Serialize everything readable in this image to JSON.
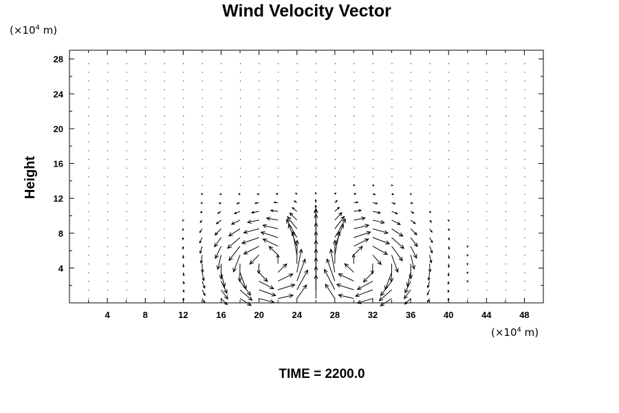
{
  "chart_data": {
    "type": "vector-field",
    "title": "Wind Velocity Vector",
    "ylabel": "Height",
    "xlabel": "",
    "x_unit": {
      "prefix": "(×10",
      "exp": "4",
      "suffix": " m)"
    },
    "y_unit": {
      "prefix": "(×10",
      "exp": "4",
      "suffix": " m)"
    },
    "xlim": [
      0,
      50
    ],
    "ylim": [
      0,
      29
    ],
    "x_ticks": [
      "4",
      "8",
      "12",
      "16",
      "20",
      "24",
      "28",
      "32",
      "36",
      "40",
      "44",
      "48"
    ],
    "y_ticks": [
      "4",
      "8",
      "12",
      "16",
      "20",
      "24",
      "28"
    ],
    "x_tick_values": [
      4,
      8,
      12,
      16,
      20,
      24,
      28,
      32,
      36,
      40,
      44,
      48
    ],
    "y_tick_values": [
      4,
      8,
      12,
      16,
      20,
      24,
      28
    ],
    "grid": false,
    "grid_x": {
      "start": 2,
      "step": 2,
      "count": 24
    },
    "grid_y": {
      "start": 0.5,
      "step": 1,
      "count": 28
    },
    "circulation_centers": [
      {
        "x": 21.5,
        "y": 4.5,
        "rotation": "counterclockwise"
      },
      {
        "x": 30.5,
        "y": 4.5,
        "rotation": "clockwise"
      }
    ],
    "updraft_center_x": 26,
    "arrow_color": "#000000"
  },
  "footer": {
    "time_label": "TIME = 2200.0"
  }
}
